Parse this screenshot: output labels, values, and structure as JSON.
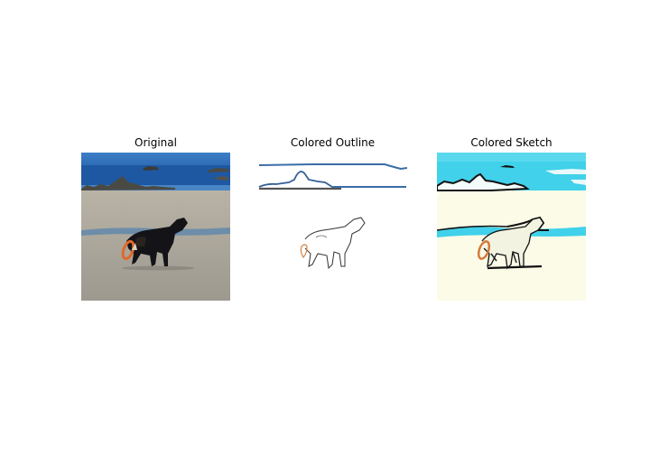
{
  "panels": [
    {
      "title": "Original"
    },
    {
      "title": "Colored Outline"
    },
    {
      "title": "Colored Sketch"
    }
  ],
  "colors": {
    "sky": "#2f6fb8",
    "sea": "#1f5ea8",
    "sand": "#a7a39a",
    "dog": "#14141a",
    "frisbee": "#e06a2a",
    "outline_blue": "#3a6ea5",
    "sketch_cyan": "#3fd0ea",
    "sketch_cream": "#fbfbe6"
  }
}
